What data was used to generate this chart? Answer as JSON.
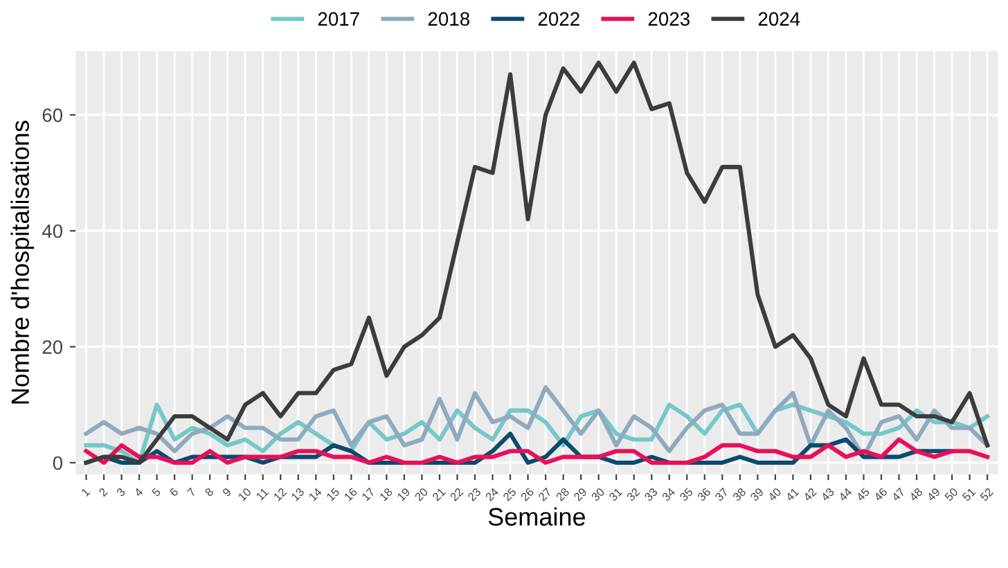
{
  "chart_data": {
    "type": "line",
    "xlabel": "Semaine",
    "ylabel": "Nombre d'hospitalisations",
    "categories": [
      "1",
      "2",
      "3",
      "4",
      "5",
      "6",
      "7",
      "8",
      "9",
      "10",
      "11",
      "12",
      "13",
      "14",
      "15",
      "16",
      "17",
      "18",
      "19",
      "20",
      "21",
      "22",
      "23",
      "24",
      "25",
      "26",
      "27",
      "28",
      "29",
      "30",
      "31",
      "32",
      "33",
      "34",
      "35",
      "36",
      "37",
      "38",
      "39",
      "40",
      "41",
      "42",
      "43",
      "44",
      "45",
      "46",
      "47",
      "48",
      "49",
      "50",
      "51",
      "52"
    ],
    "series": [
      {
        "name": "2017",
        "color": "#76c7c8",
        "values": [
          3,
          3,
          2,
          0,
          10,
          4,
          6,
          5,
          3,
          4,
          2,
          5,
          7,
          5,
          3,
          2,
          7,
          4,
          5,
          7,
          4,
          9,
          6,
          4,
          9,
          9,
          7,
          3,
          8,
          9,
          5,
          4,
          4,
          10,
          8,
          5,
          9,
          10,
          5,
          9,
          10,
          9,
          8,
          7,
          5,
          5,
          6,
          9,
          7,
          7,
          6,
          8
        ]
      },
      {
        "name": "2018",
        "color": "#8eaabf",
        "values": [
          5,
          7,
          5,
          6,
          5,
          2,
          5,
          6,
          8,
          6,
          6,
          4,
          4,
          8,
          9,
          3,
          7,
          8,
          3,
          4,
          11,
          4,
          12,
          7,
          8,
          6,
          13,
          9,
          5,
          9,
          3,
          8,
          6,
          2,
          6,
          9,
          10,
          5,
          5,
          9,
          12,
          3,
          9,
          6,
          1,
          7,
          8,
          4,
          9,
          6,
          6,
          3
        ]
      },
      {
        "name": "2022",
        "color": "#0c4a6e",
        "values": [
          0,
          1,
          0,
          0,
          2,
          0,
          1,
          1,
          1,
          1,
          0,
          1,
          1,
          1,
          3,
          2,
          0,
          0,
          0,
          0,
          0,
          0,
          0,
          2,
          5,
          0,
          1,
          4,
          1,
          1,
          0,
          0,
          1,
          0,
          0,
          0,
          0,
          1,
          0,
          0,
          0,
          3,
          3,
          4,
          1,
          1,
          1,
          2,
          2,
          2,
          null,
          null
        ]
      },
      {
        "name": "2023",
        "color": "#e8105a",
        "values": [
          2,
          0,
          3,
          1,
          1,
          0,
          0,
          2,
          0,
          1,
          1,
          1,
          2,
          2,
          1,
          1,
          0,
          1,
          0,
          0,
          1,
          0,
          1,
          1,
          2,
          2,
          0,
          1,
          1,
          1,
          2,
          2,
          0,
          0,
          0,
          1,
          3,
          3,
          2,
          2,
          1,
          1,
          3,
          1,
          2,
          1,
          4,
          2,
          1,
          2,
          2,
          1
        ]
      },
      {
        "name": "2024",
        "color": "#3c3c3c",
        "values": [
          0,
          1,
          1,
          0,
          4,
          8,
          8,
          6,
          4,
          10,
          12,
          8,
          12,
          12,
          16,
          17,
          25,
          15,
          20,
          22,
          25,
          38,
          51,
          50,
          67,
          42,
          60,
          68,
          64,
          69,
          64,
          69,
          61,
          62,
          50,
          45,
          51,
          51,
          29,
          20,
          22,
          18,
          10,
          8,
          18,
          10,
          10,
          8,
          8,
          7,
          12,
          3
        ]
      }
    ],
    "ylim": [
      -2,
      71
    ],
    "yticks": [
      0,
      20,
      40,
      60
    ],
    "grid": true,
    "legend": "top",
    "marker": "none",
    "line_style": "solid"
  }
}
